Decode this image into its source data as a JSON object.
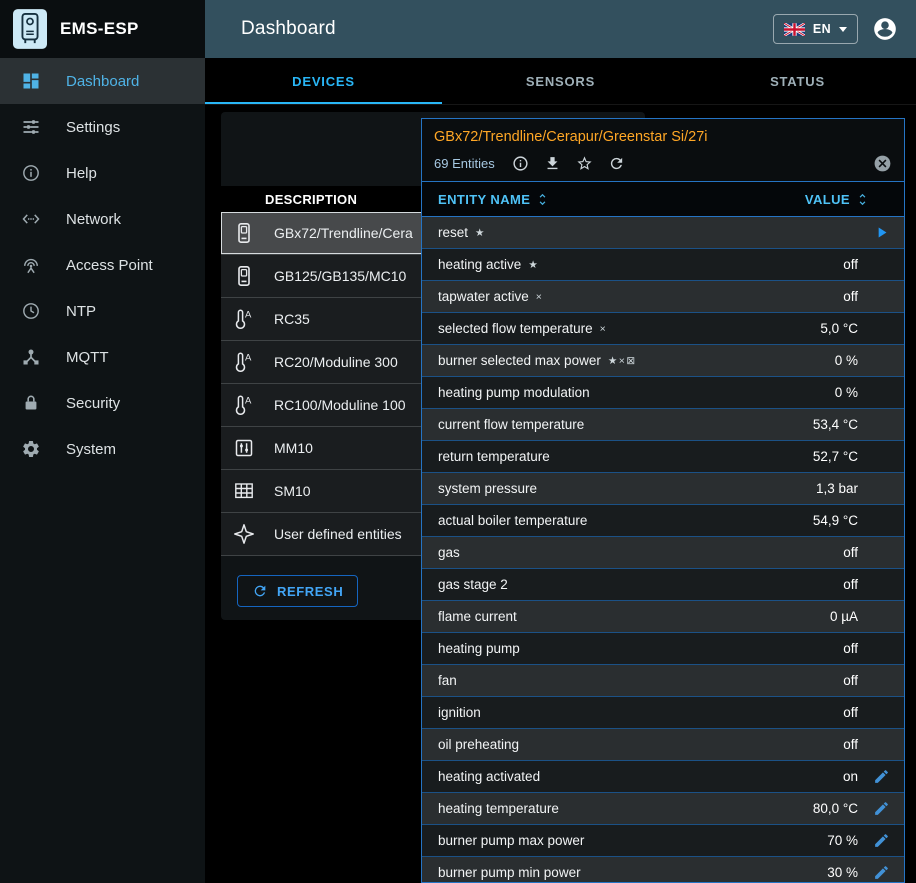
{
  "app": {
    "brand": "EMS-ESP",
    "page_title": "Dashboard"
  },
  "header": {
    "language": "EN"
  },
  "sidebar": {
    "items": [
      {
        "label": "Dashboard",
        "icon": "dashboard",
        "active": true
      },
      {
        "label": "Settings",
        "icon": "tune",
        "active": false
      },
      {
        "label": "Help",
        "icon": "info",
        "active": false
      },
      {
        "label": "Network",
        "icon": "ethernet",
        "active": false
      },
      {
        "label": "Access Point",
        "icon": "antenna",
        "active": false
      },
      {
        "label": "NTP",
        "icon": "clock",
        "active": false
      },
      {
        "label": "MQTT",
        "icon": "hub",
        "active": false
      },
      {
        "label": "Security",
        "icon": "lock",
        "active": false
      },
      {
        "label": "System",
        "icon": "gear",
        "active": false
      }
    ]
  },
  "tabs": [
    {
      "label": "DEVICES",
      "active": true
    },
    {
      "label": "SENSORS",
      "active": false
    },
    {
      "label": "STATUS",
      "active": false
    }
  ],
  "device_list": {
    "column_header": "DESCRIPTION",
    "refresh_label": "REFRESH",
    "rows": [
      {
        "label": "GBx72/Trendline/Cera",
        "icon": "boiler",
        "selected": true
      },
      {
        "label": "GB125/GB135/MC10",
        "icon": "boiler",
        "selected": false
      },
      {
        "label": "RC35",
        "icon": "thermostat",
        "selected": false
      },
      {
        "label": "RC20/Moduline 300",
        "icon": "thermostat",
        "selected": false
      },
      {
        "label": "RC100/Moduline 100",
        "icon": "thermostat",
        "selected": false
      },
      {
        "label": "MM10",
        "icon": "mixer",
        "selected": false
      },
      {
        "label": "SM10",
        "icon": "solar",
        "selected": false
      },
      {
        "label": "User defined entities",
        "icon": "sparkle",
        "selected": false
      }
    ]
  },
  "detail_panel": {
    "title": "GBx72/Trendline/Cerapur/Greenstar Si/27i",
    "entity_count_label": "69 Entities",
    "columns": {
      "name": "ENTITY NAME",
      "value": "VALUE"
    },
    "rows": [
      {
        "name": "reset",
        "flags": "★",
        "value": "",
        "action": "play"
      },
      {
        "name": "heating active",
        "flags": "★",
        "value": "off",
        "action": ""
      },
      {
        "name": "tapwater active",
        "flags": "×",
        "value": "off",
        "action": ""
      },
      {
        "name": "selected flow temperature",
        "flags": "×",
        "value": "5,0 °C",
        "action": ""
      },
      {
        "name": "burner selected max power",
        "flags": "★×⊠",
        "value": "0 %",
        "action": ""
      },
      {
        "name": "heating pump modulation",
        "flags": "",
        "value": "0 %",
        "action": ""
      },
      {
        "name": "current flow temperature",
        "flags": "",
        "value": "53,4 °C",
        "action": ""
      },
      {
        "name": "return temperature",
        "flags": "",
        "value": "52,7 °C",
        "action": ""
      },
      {
        "name": "system pressure",
        "flags": "",
        "value": "1,3 bar",
        "action": ""
      },
      {
        "name": "actual boiler temperature",
        "flags": "",
        "value": "54,9 °C",
        "action": ""
      },
      {
        "name": "gas",
        "flags": "",
        "value": "off",
        "action": ""
      },
      {
        "name": "gas stage 2",
        "flags": "",
        "value": "off",
        "action": ""
      },
      {
        "name": "flame current",
        "flags": "",
        "value": "0 µA",
        "action": ""
      },
      {
        "name": "heating pump",
        "flags": "",
        "value": "off",
        "action": ""
      },
      {
        "name": "fan",
        "flags": "",
        "value": "off",
        "action": ""
      },
      {
        "name": "ignition",
        "flags": "",
        "value": "off",
        "action": ""
      },
      {
        "name": "oil preheating",
        "flags": "",
        "value": "off",
        "action": ""
      },
      {
        "name": "heating activated",
        "flags": "",
        "value": "on",
        "action": "edit"
      },
      {
        "name": "heating temperature",
        "flags": "",
        "value": "80,0 °C",
        "action": "edit"
      },
      {
        "name": "burner pump max power",
        "flags": "",
        "value": "70 %",
        "action": "edit"
      },
      {
        "name": "burner pump min power",
        "flags": "",
        "value": "30 %",
        "action": "edit"
      }
    ]
  },
  "colors": {
    "accent": "#29b6f6",
    "appbar": "#33505e",
    "panel_border": "#2574c4",
    "title_orange": "#ffa726",
    "row_light": "#2a2e30",
    "row_dark": "#181c1e"
  }
}
